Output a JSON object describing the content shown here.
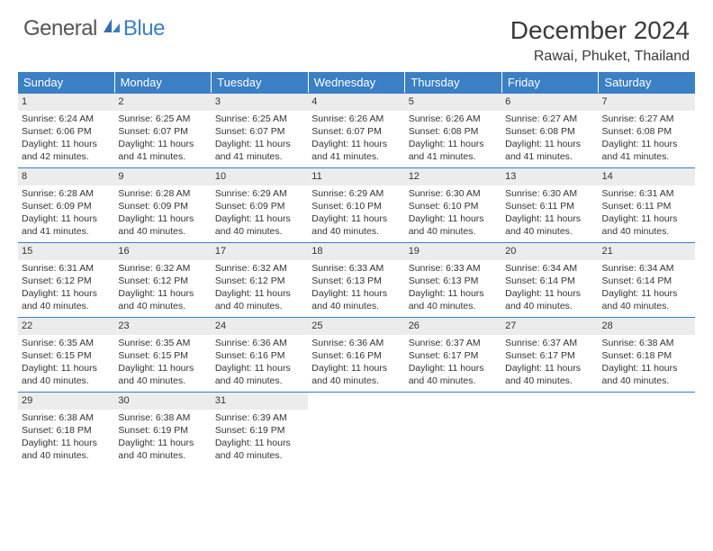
{
  "brand": {
    "text_gray": "General",
    "text_blue": "Blue"
  },
  "title": "December 2024",
  "location": "Rawai, Phuket, Thailand",
  "colors": {
    "header_bg": "#3b7fc4",
    "header_text": "#ffffff",
    "daynum_bg": "#ececec",
    "rule": "#3b7fc4",
    "text": "#333333",
    "page_bg": "#ffffff"
  },
  "weekdays": [
    "Sunday",
    "Monday",
    "Tuesday",
    "Wednesday",
    "Thursday",
    "Friday",
    "Saturday"
  ],
  "weeks": [
    [
      {
        "n": "1",
        "sunrise": "Sunrise: 6:24 AM",
        "sunset": "Sunset: 6:06 PM",
        "daylight": "Daylight: 11 hours and 42 minutes."
      },
      {
        "n": "2",
        "sunrise": "Sunrise: 6:25 AM",
        "sunset": "Sunset: 6:07 PM",
        "daylight": "Daylight: 11 hours and 41 minutes."
      },
      {
        "n": "3",
        "sunrise": "Sunrise: 6:25 AM",
        "sunset": "Sunset: 6:07 PM",
        "daylight": "Daylight: 11 hours and 41 minutes."
      },
      {
        "n": "4",
        "sunrise": "Sunrise: 6:26 AM",
        "sunset": "Sunset: 6:07 PM",
        "daylight": "Daylight: 11 hours and 41 minutes."
      },
      {
        "n": "5",
        "sunrise": "Sunrise: 6:26 AM",
        "sunset": "Sunset: 6:08 PM",
        "daylight": "Daylight: 11 hours and 41 minutes."
      },
      {
        "n": "6",
        "sunrise": "Sunrise: 6:27 AM",
        "sunset": "Sunset: 6:08 PM",
        "daylight": "Daylight: 11 hours and 41 minutes."
      },
      {
        "n": "7",
        "sunrise": "Sunrise: 6:27 AM",
        "sunset": "Sunset: 6:08 PM",
        "daylight": "Daylight: 11 hours and 41 minutes."
      }
    ],
    [
      {
        "n": "8",
        "sunrise": "Sunrise: 6:28 AM",
        "sunset": "Sunset: 6:09 PM",
        "daylight": "Daylight: 11 hours and 41 minutes."
      },
      {
        "n": "9",
        "sunrise": "Sunrise: 6:28 AM",
        "sunset": "Sunset: 6:09 PM",
        "daylight": "Daylight: 11 hours and 40 minutes."
      },
      {
        "n": "10",
        "sunrise": "Sunrise: 6:29 AM",
        "sunset": "Sunset: 6:09 PM",
        "daylight": "Daylight: 11 hours and 40 minutes."
      },
      {
        "n": "11",
        "sunrise": "Sunrise: 6:29 AM",
        "sunset": "Sunset: 6:10 PM",
        "daylight": "Daylight: 11 hours and 40 minutes."
      },
      {
        "n": "12",
        "sunrise": "Sunrise: 6:30 AM",
        "sunset": "Sunset: 6:10 PM",
        "daylight": "Daylight: 11 hours and 40 minutes."
      },
      {
        "n": "13",
        "sunrise": "Sunrise: 6:30 AM",
        "sunset": "Sunset: 6:11 PM",
        "daylight": "Daylight: 11 hours and 40 minutes."
      },
      {
        "n": "14",
        "sunrise": "Sunrise: 6:31 AM",
        "sunset": "Sunset: 6:11 PM",
        "daylight": "Daylight: 11 hours and 40 minutes."
      }
    ],
    [
      {
        "n": "15",
        "sunrise": "Sunrise: 6:31 AM",
        "sunset": "Sunset: 6:12 PM",
        "daylight": "Daylight: 11 hours and 40 minutes."
      },
      {
        "n": "16",
        "sunrise": "Sunrise: 6:32 AM",
        "sunset": "Sunset: 6:12 PM",
        "daylight": "Daylight: 11 hours and 40 minutes."
      },
      {
        "n": "17",
        "sunrise": "Sunrise: 6:32 AM",
        "sunset": "Sunset: 6:12 PM",
        "daylight": "Daylight: 11 hours and 40 minutes."
      },
      {
        "n": "18",
        "sunrise": "Sunrise: 6:33 AM",
        "sunset": "Sunset: 6:13 PM",
        "daylight": "Daylight: 11 hours and 40 minutes."
      },
      {
        "n": "19",
        "sunrise": "Sunrise: 6:33 AM",
        "sunset": "Sunset: 6:13 PM",
        "daylight": "Daylight: 11 hours and 40 minutes."
      },
      {
        "n": "20",
        "sunrise": "Sunrise: 6:34 AM",
        "sunset": "Sunset: 6:14 PM",
        "daylight": "Daylight: 11 hours and 40 minutes."
      },
      {
        "n": "21",
        "sunrise": "Sunrise: 6:34 AM",
        "sunset": "Sunset: 6:14 PM",
        "daylight": "Daylight: 11 hours and 40 minutes."
      }
    ],
    [
      {
        "n": "22",
        "sunrise": "Sunrise: 6:35 AM",
        "sunset": "Sunset: 6:15 PM",
        "daylight": "Daylight: 11 hours and 40 minutes."
      },
      {
        "n": "23",
        "sunrise": "Sunrise: 6:35 AM",
        "sunset": "Sunset: 6:15 PM",
        "daylight": "Daylight: 11 hours and 40 minutes."
      },
      {
        "n": "24",
        "sunrise": "Sunrise: 6:36 AM",
        "sunset": "Sunset: 6:16 PM",
        "daylight": "Daylight: 11 hours and 40 minutes."
      },
      {
        "n": "25",
        "sunrise": "Sunrise: 6:36 AM",
        "sunset": "Sunset: 6:16 PM",
        "daylight": "Daylight: 11 hours and 40 minutes."
      },
      {
        "n": "26",
        "sunrise": "Sunrise: 6:37 AM",
        "sunset": "Sunset: 6:17 PM",
        "daylight": "Daylight: 11 hours and 40 minutes."
      },
      {
        "n": "27",
        "sunrise": "Sunrise: 6:37 AM",
        "sunset": "Sunset: 6:17 PM",
        "daylight": "Daylight: 11 hours and 40 minutes."
      },
      {
        "n": "28",
        "sunrise": "Sunrise: 6:38 AM",
        "sunset": "Sunset: 6:18 PM",
        "daylight": "Daylight: 11 hours and 40 minutes."
      }
    ],
    [
      {
        "n": "29",
        "sunrise": "Sunrise: 6:38 AM",
        "sunset": "Sunset: 6:18 PM",
        "daylight": "Daylight: 11 hours and 40 minutes."
      },
      {
        "n": "30",
        "sunrise": "Sunrise: 6:38 AM",
        "sunset": "Sunset: 6:19 PM",
        "daylight": "Daylight: 11 hours and 40 minutes."
      },
      {
        "n": "31",
        "sunrise": "Sunrise: 6:39 AM",
        "sunset": "Sunset: 6:19 PM",
        "daylight": "Daylight: 11 hours and 40 minutes."
      },
      null,
      null,
      null,
      null
    ]
  ]
}
